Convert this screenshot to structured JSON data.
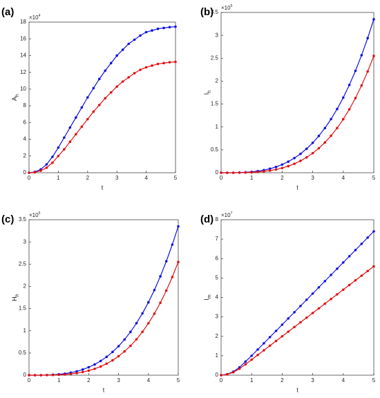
{
  "chart_data": [
    {
      "type": "line",
      "panel_label": "(a)",
      "xlabel": "t",
      "ylabel": "A",
      "ylabel_sub": "h",
      "y_multiplier": "×10",
      "y_exponent": "4",
      "x": [
        0,
        0.2,
        0.4,
        0.6,
        0.8,
        1,
        1.2,
        1.4,
        1.6,
        1.8,
        2,
        2.2,
        2.4,
        2.6,
        2.8,
        3,
        3.2,
        3.4,
        3.6,
        3.8,
        4,
        4.2,
        4.4,
        4.6,
        4.8,
        5
      ],
      "xlim": [
        0,
        5
      ],
      "xticks": [
        0,
        1,
        2,
        3,
        4,
        5
      ],
      "ylim": [
        0,
        18
      ],
      "yticks": [
        0,
        2,
        4,
        6,
        8,
        10,
        12,
        14,
        16,
        18
      ],
      "series": [
        {
          "color": "#1010e0",
          "values": [
            0,
            0.1,
            0.4,
            1.0,
            1.9,
            3.0,
            4.2,
            5.4,
            6.6,
            7.8,
            9.0,
            10.1,
            11.2,
            12.2,
            13.1,
            14.0,
            14.7,
            15.4,
            15.9,
            16.4,
            16.8,
            17.0,
            17.2,
            17.3,
            17.4,
            17.45
          ]
        },
        {
          "color": "#e01010",
          "values": [
            0,
            0.05,
            0.25,
            0.6,
            1.2,
            2.0,
            2.8,
            3.7,
            4.6,
            5.5,
            6.4,
            7.3,
            8.1,
            8.9,
            9.6,
            10.3,
            10.9,
            11.4,
            11.9,
            12.3,
            12.6,
            12.8,
            13.0,
            13.1,
            13.2,
            13.25
          ]
        }
      ]
    },
    {
      "type": "line",
      "panel_label": "(b)",
      "xlabel": "t",
      "ylabel": "I",
      "ylabel_sub": "h",
      "y_multiplier": "×10",
      "y_exponent": "5",
      "x": [
        0,
        0.2,
        0.4,
        0.6,
        0.8,
        1,
        1.2,
        1.4,
        1.6,
        1.8,
        2,
        2.2,
        2.4,
        2.6,
        2.8,
        3,
        3.2,
        3.4,
        3.6,
        3.8,
        4,
        4.2,
        4.4,
        4.6,
        4.8,
        5
      ],
      "xlim": [
        0,
        5
      ],
      "xticks": [
        0,
        1,
        2,
        3,
        4,
        5
      ],
      "ylim": [
        0,
        3.5
      ],
      "yticks": [
        0,
        0.5,
        1,
        1.5,
        2,
        2.5,
        3,
        3.5
      ],
      "series": [
        {
          "color": "#1010e0",
          "values": [
            0,
            0,
            0,
            0.004,
            0.01,
            0.02,
            0.035,
            0.057,
            0.087,
            0.128,
            0.179,
            0.242,
            0.32,
            0.413,
            0.524,
            0.653,
            0.803,
            0.975,
            1.171,
            1.392,
            1.64,
            1.917,
            2.225,
            2.565,
            2.94,
            3.35
          ]
        },
        {
          "color": "#e01010",
          "values": [
            0,
            0,
            0,
            0.002,
            0.004,
            0.009,
            0.017,
            0.03,
            0.047,
            0.071,
            0.103,
            0.144,
            0.195,
            0.259,
            0.335,
            0.427,
            0.535,
            0.661,
            0.807,
            0.976,
            1.168,
            1.385,
            1.631,
            1.904,
            2.211,
            2.55
          ]
        }
      ]
    },
    {
      "type": "line",
      "panel_label": "(c)",
      "xlabel": "t",
      "ylabel": "H",
      "ylabel_sub": "h",
      "y_multiplier": "×10",
      "y_exponent": "5",
      "x": [
        0,
        0.2,
        0.4,
        0.6,
        0.8,
        1,
        1.2,
        1.4,
        1.6,
        1.8,
        2,
        2.2,
        2.4,
        2.6,
        2.8,
        3,
        3.2,
        3.4,
        3.6,
        3.8,
        4,
        4.2,
        4.4,
        4.6,
        4.8,
        5
      ],
      "xlim": [
        0,
        5
      ],
      "xticks": [
        0,
        1,
        2,
        3,
        4,
        5
      ],
      "ylim": [
        0,
        3.5
      ],
      "yticks": [
        0,
        0.5,
        1,
        1.5,
        2,
        2.5,
        3,
        3.5
      ],
      "series": [
        {
          "color": "#1010e0",
          "values": [
            0,
            0,
            0,
            0.004,
            0.01,
            0.02,
            0.035,
            0.057,
            0.087,
            0.128,
            0.179,
            0.242,
            0.32,
            0.413,
            0.524,
            0.653,
            0.803,
            0.975,
            1.171,
            1.392,
            1.64,
            1.917,
            2.225,
            2.565,
            2.94,
            3.35
          ]
        },
        {
          "color": "#e01010",
          "values": [
            0,
            0,
            0,
            0.002,
            0.004,
            0.009,
            0.017,
            0.03,
            0.047,
            0.071,
            0.103,
            0.144,
            0.195,
            0.259,
            0.335,
            0.427,
            0.535,
            0.661,
            0.807,
            0.976,
            1.168,
            1.385,
            1.631,
            1.904,
            2.211,
            2.55
          ]
        }
      ]
    },
    {
      "type": "line",
      "panel_label": "(d)",
      "xlabel": "t",
      "ylabel": "I",
      "ylabel_sub": "m",
      "y_multiplier": "×10",
      "y_exponent": "7",
      "x": [
        0,
        0.2,
        0.4,
        0.6,
        0.8,
        1,
        1.2,
        1.4,
        1.6,
        1.8,
        2,
        2.2,
        2.4,
        2.6,
        2.8,
        3,
        3.2,
        3.4,
        3.6,
        3.8,
        4,
        4.2,
        4.4,
        4.6,
        4.8,
        5
      ],
      "xlim": [
        0,
        5
      ],
      "xticks": [
        0,
        1,
        2,
        3,
        4,
        5
      ],
      "ylim": [
        0,
        8
      ],
      "yticks": [
        0,
        1,
        2,
        3,
        4,
        5,
        6,
        7,
        8
      ],
      "series": [
        {
          "color": "#1010e0",
          "values": [
            0,
            0.05,
            0.18,
            0.4,
            0.7,
            1.0,
            1.32,
            1.64,
            1.96,
            2.28,
            2.6,
            2.92,
            3.24,
            3.56,
            3.88,
            4.2,
            4.52,
            4.84,
            5.16,
            5.48,
            5.8,
            6.12,
            6.44,
            6.76,
            7.08,
            7.4
          ]
        },
        {
          "color": "#e01010",
          "values": [
            0,
            0.04,
            0.15,
            0.33,
            0.56,
            0.8,
            1.04,
            1.28,
            1.52,
            1.76,
            2.0,
            2.24,
            2.48,
            2.72,
            2.96,
            3.2,
            3.44,
            3.68,
            3.92,
            4.16,
            4.4,
            4.64,
            4.88,
            5.12,
            5.36,
            5.6
          ]
        }
      ]
    }
  ]
}
